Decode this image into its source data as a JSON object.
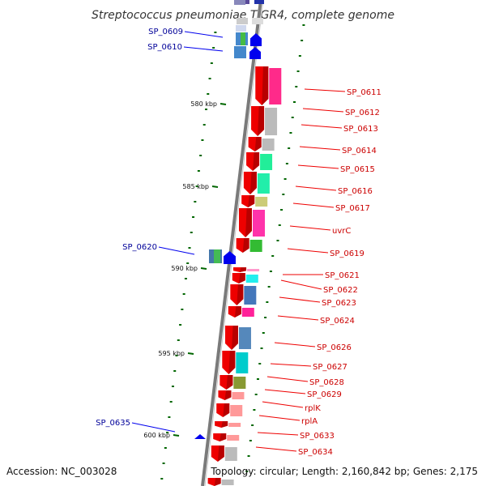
{
  "title": "Streptococcus pneumoniae TIGR4, complete genome",
  "accession_text": "Accession: NC_003028",
  "summary_text": "Topology: circular; Length: 2,160,842 bp; Genes: 2,175",
  "colors": {
    "forward_gene": "#ee0000",
    "reverse_gene": "#0000ee",
    "forward_label": "#cc0000",
    "reverse_label": "#000099",
    "tick": "#006600",
    "backbone": "#888888"
  },
  "scale_ticks": [
    {
      "label": "580 kbp",
      "y": 580
    },
    {
      "label": "585 kbp",
      "y": 585
    },
    {
      "label": "590 kbp",
      "y": 590
    },
    {
      "label": "595 kbp",
      "y": 595
    },
    {
      "label": "600 kbp",
      "y": 600
    }
  ],
  "forward_genes": [
    {
      "label": "SP_0611"
    },
    {
      "label": "SP_0612"
    },
    {
      "label": "SP_0613"
    },
    {
      "label": "SP_0614"
    },
    {
      "label": "SP_0615"
    },
    {
      "label": "SP_0616"
    },
    {
      "label": "SP_0617"
    },
    {
      "label": "uvrC"
    },
    {
      "label": "SP_0619"
    },
    {
      "label": "SP_0621"
    },
    {
      "label": "SP_0622"
    },
    {
      "label": "SP_0623"
    },
    {
      "label": "SP_0624"
    },
    {
      "label": "SP_0626"
    },
    {
      "label": "SP_0627"
    },
    {
      "label": "SP_0628"
    },
    {
      "label": "SP_0629"
    },
    {
      "label": "rplK"
    },
    {
      "label": "rplA"
    },
    {
      "label": "SP_0633"
    },
    {
      "label": "SP_0634"
    }
  ],
  "reverse_genes": [
    {
      "label": "SP_0609"
    },
    {
      "label": "SP_0610"
    },
    {
      "label": "SP_0620"
    },
    {
      "label": "SP_0635"
    }
  ]
}
